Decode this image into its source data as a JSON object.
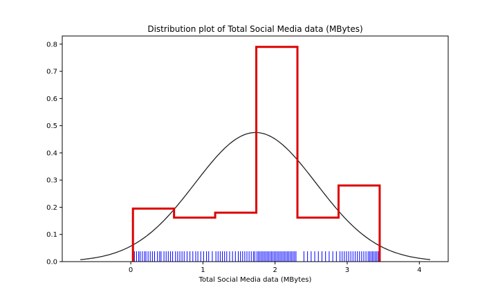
{
  "chart_data": {
    "type": "histogram",
    "title": "Distribution plot of Total Social Media data (MBytes)",
    "xlabel": "Total Social Media data (MBytes)",
    "ylabel": "",
    "xlim": [
      -0.95,
      4.4
    ],
    "ylim": [
      0,
      0.83
    ],
    "xticks": [
      0,
      1,
      2,
      3,
      4
    ],
    "yticks": [
      0.0,
      0.1,
      0.2,
      0.3,
      0.4,
      0.5,
      0.6,
      0.7,
      0.8
    ],
    "histogram": {
      "bin_edges": [
        0.03,
        0.6,
        1.17,
        1.74,
        2.31,
        2.88,
        3.45
      ],
      "density": [
        0.195,
        0.162,
        0.18,
        0.79,
        0.162,
        0.28
      ],
      "color": "#dd0000"
    },
    "kde_fit": {
      "type": "normal",
      "mean": 1.73,
      "std": 0.84,
      "x_range": [
        -0.7,
        4.15
      ],
      "color": "#222222"
    },
    "rug": {
      "color": "#0000ff",
      "values": [
        0.05,
        0.08,
        0.11,
        0.13,
        0.16,
        0.19,
        0.21,
        0.24,
        0.27,
        0.3,
        0.33,
        0.37,
        0.4,
        0.42,
        0.46,
        0.49,
        0.52,
        0.55,
        0.58,
        0.62,
        0.65,
        0.68,
        0.71,
        0.74,
        0.78,
        0.82,
        0.86,
        0.9,
        0.93,
        0.97,
        1.01,
        1.05,
        1.08,
        1.13,
        1.18,
        1.21,
        1.24,
        1.27,
        1.3,
        1.33,
        1.37,
        1.41,
        1.45,
        1.49,
        1.52,
        1.55,
        1.58,
        1.61,
        1.64,
        1.67,
        1.7,
        1.72,
        1.75,
        1.77,
        1.79,
        1.81,
        1.83,
        1.85,
        1.87,
        1.89,
        1.91,
        1.93,
        1.95,
        1.97,
        1.99,
        2.01,
        2.03,
        2.05,
        2.07,
        2.09,
        2.11,
        2.13,
        2.15,
        2.17,
        2.19,
        2.21,
        2.23,
        2.25,
        2.27,
        2.29,
        2.4,
        2.45,
        2.5,
        2.55,
        2.6,
        2.65,
        2.7,
        2.75,
        2.8,
        2.85,
        2.9,
        2.93,
        2.96,
        2.99,
        3.02,
        3.05,
        3.08,
        3.11,
        3.14,
        3.17,
        3.2,
        3.23,
        3.26,
        3.29,
        3.31,
        3.33,
        3.35,
        3.37,
        3.39,
        3.41,
        3.43,
        3.45
      ]
    }
  }
}
